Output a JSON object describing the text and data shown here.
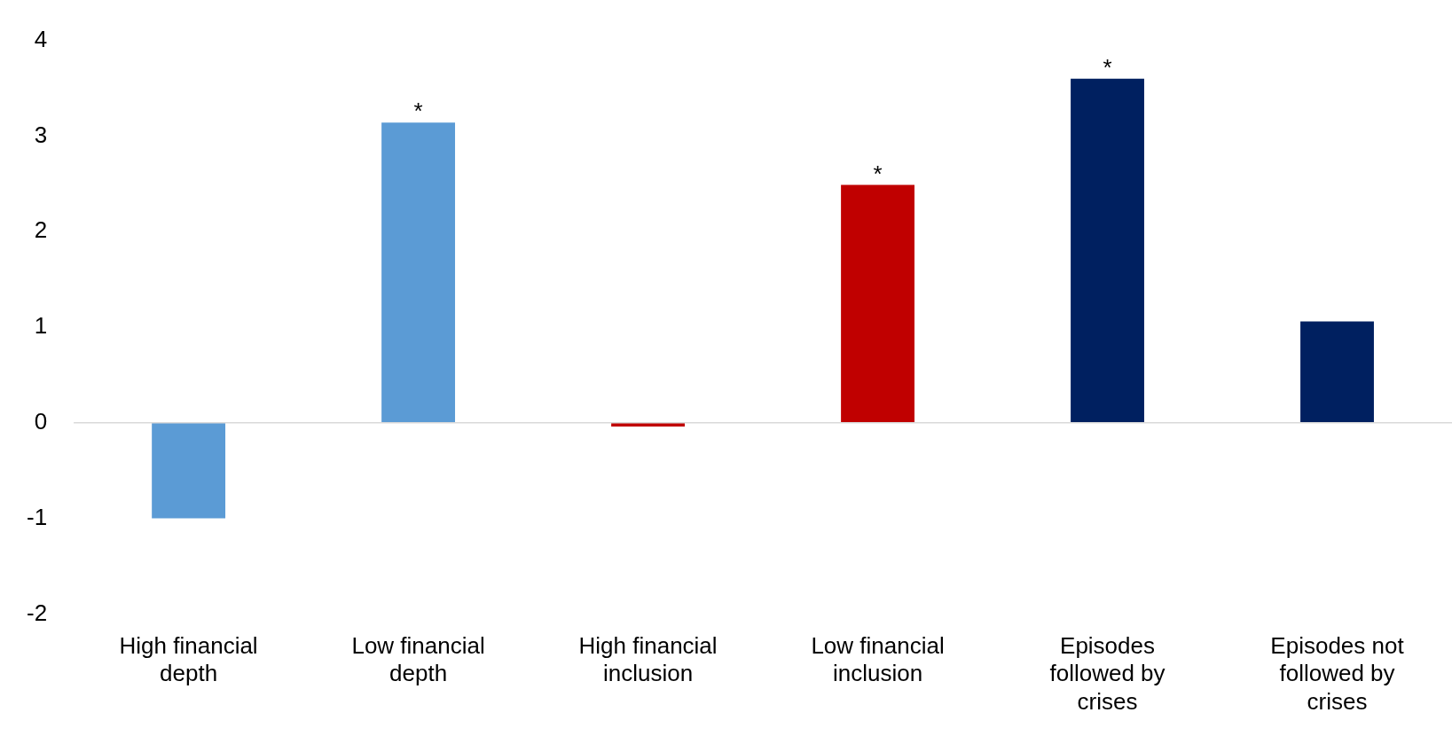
{
  "chart_data": {
    "type": "bar",
    "categories": [
      "High financial depth",
      "Low financial depth",
      "High financial inclusion",
      "Low financial inclusion",
      "Episodes followed by crises",
      "Episodes not followed by crises"
    ],
    "values": [
      -1.0,
      3.14,
      -0.04,
      2.49,
      3.6,
      1.06
    ],
    "colors": [
      "#5b9bd5",
      "#5b9bd5",
      "#c00000",
      "#c00000",
      "#002060",
      "#002060"
    ],
    "ylim": [
      -2,
      4
    ],
    "yticks": [
      -2,
      -1,
      0,
      1,
      2,
      3,
      4
    ],
    "grid": false,
    "legend": false,
    "ref_lines": [
      {
        "axis": "y",
        "value": 0,
        "color": "#d9d9d9"
      }
    ],
    "annotations": [
      {
        "text": "*",
        "x": "Low financial depth",
        "y": 3.14
      },
      {
        "text": "*",
        "x": "Low financial inclusion",
        "y": 2.49
      },
      {
        "text": "*",
        "x": "Episodes followed by crises",
        "y": 3.6
      }
    ]
  }
}
